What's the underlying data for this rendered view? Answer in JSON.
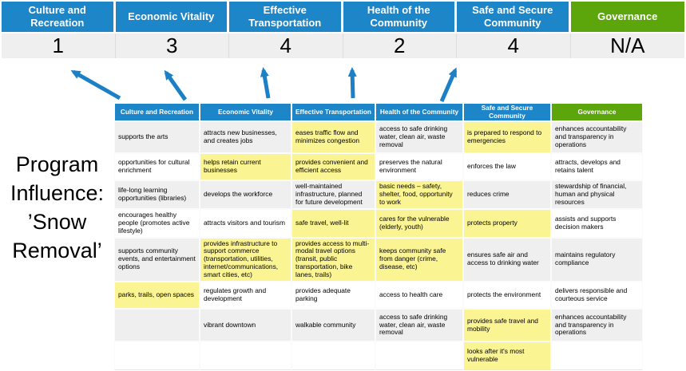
{
  "title": "Program Influence: ’Snow Removal’",
  "colors": {
    "blue": "#1C86C8",
    "green": "#5CA50B",
    "yellow": "#FBF492",
    "rowgray": "#EFEFEF",
    "arrow": "#1C80C6"
  },
  "summary": {
    "columns": [
      {
        "label": "Culture and Recreation",
        "score": "1",
        "color": "blue"
      },
      {
        "label": "Economic Vitality",
        "score": "3",
        "color": "blue"
      },
      {
        "label": "Effective Transportation",
        "score": "4",
        "color": "blue"
      },
      {
        "label": "Health of the Community",
        "score": "2",
        "color": "blue"
      },
      {
        "label": "Safe and Secure Community",
        "score": "4",
        "color": "blue"
      },
      {
        "label": "Governance",
        "score": "N/A",
        "color": "green"
      }
    ]
  },
  "arrows": {
    "count": 5,
    "description": "blue arrows pointing up from matrix columns to score cells",
    "directions": [
      "up-left",
      "up-left",
      "up",
      "up",
      "up-right"
    ]
  },
  "matrix": {
    "headers": [
      {
        "label": "Culture and Recreation",
        "color": "blue"
      },
      {
        "label": "Economic Vitality",
        "color": "blue"
      },
      {
        "label": "Effective Transportation",
        "color": "blue"
      },
      {
        "label": "Health of the Community",
        "color": "blue"
      },
      {
        "label": "Safe and Secure Community",
        "color": "blue"
      },
      {
        "label": "Governance",
        "color": "green"
      }
    ],
    "rows": [
      [
        {
          "text": "supports the arts",
          "highlight": false
        },
        {
          "text": "attracts new businesses, and creates jobs",
          "highlight": false
        },
        {
          "text": "eases traffic flow and minimizes congestion",
          "highlight": true
        },
        {
          "text": "access to safe drinking water, clean air, waste removal",
          "highlight": false
        },
        {
          "text": "is prepared to respond to emergencies",
          "highlight": true
        },
        {
          "text": "enhances accountability and transparency in operations",
          "highlight": false
        }
      ],
      [
        {
          "text": "opportunities for cultural enrichment",
          "highlight": false
        },
        {
          "text": "helps retain current businesses",
          "highlight": true
        },
        {
          "text": "provides convenient and efficient access",
          "highlight": true
        },
        {
          "text": "preserves the natural environment",
          "highlight": false
        },
        {
          "text": "enforces the law",
          "highlight": false
        },
        {
          "text": "attracts, develops and retains talent",
          "highlight": false
        }
      ],
      [
        {
          "text": "life-long learning opportunities (libraries)",
          "highlight": false
        },
        {
          "text": "develops the workforce",
          "highlight": false
        },
        {
          "text": "well-maintained infrastructure, planned for future development",
          "highlight": false
        },
        {
          "text": "basic needs – safety, shelter, food, opportunity to work",
          "highlight": true
        },
        {
          "text": "reduces crime",
          "highlight": false
        },
        {
          "text": "stewardship of financial, human and physical resources",
          "highlight": false
        }
      ],
      [
        {
          "text": "encourages healthy people (promotes active lifestyle)",
          "highlight": false
        },
        {
          "text": "attracts visitors and tourism",
          "highlight": false
        },
        {
          "text": "safe travel, well-lit",
          "highlight": true
        },
        {
          "text": "cares for the vulnerable (elderly, youth)",
          "highlight": true
        },
        {
          "text": "protects property",
          "highlight": true
        },
        {
          "text": "assists and supports decision makers",
          "highlight": false
        }
      ],
      [
        {
          "text": "supports community events, and entertainment options",
          "highlight": false
        },
        {
          "text": "provides infrastructure to support commerce (transportation, utilities, internet/communications, smart cities, etc)",
          "highlight": true
        },
        {
          "text": "provides access to multi-modal travel options (transit, public transportation, bike lanes, trails)",
          "highlight": true
        },
        {
          "text": "keeps community safe from danger (crime, disease, etc)",
          "highlight": true
        },
        {
          "text": "ensures safe air and access to drinking water",
          "highlight": false
        },
        {
          "text": "maintains regulatory compliance",
          "highlight": false
        }
      ],
      [
        {
          "text": "parks, trails, open spaces",
          "highlight": true
        },
        {
          "text": "regulates growth and development",
          "highlight": false
        },
        {
          "text": "provides adequate parking",
          "highlight": false
        },
        {
          "text": "access to health care",
          "highlight": false
        },
        {
          "text": "protects the environment",
          "highlight": false
        },
        {
          "text": "delivers responsible and courteous service",
          "highlight": false
        }
      ],
      [
        {
          "text": "",
          "highlight": false
        },
        {
          "text": "vibrant downtown",
          "highlight": false
        },
        {
          "text": "walkable community",
          "highlight": false
        },
        {
          "text": "access to safe drinking water, clean air, waste removal",
          "highlight": false
        },
        {
          "text": "provides safe travel and mobility",
          "highlight": true
        },
        {
          "text": "enhances accountability and transparency in operations",
          "highlight": false
        }
      ],
      [
        {
          "text": "",
          "highlight": false
        },
        {
          "text": "",
          "highlight": false
        },
        {
          "text": "",
          "highlight": false
        },
        {
          "text": "",
          "highlight": false
        },
        {
          "text": "looks after it's most vulnerable",
          "highlight": true
        },
        {
          "text": "",
          "highlight": false
        }
      ]
    ]
  }
}
